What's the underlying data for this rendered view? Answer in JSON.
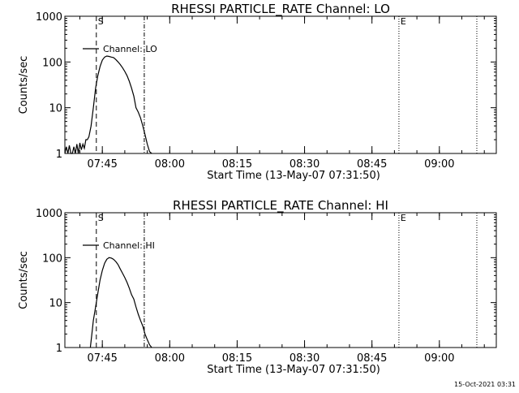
{
  "footer": {
    "timestamp": "15-Oct-2021 03:31"
  },
  "chart_data": [
    {
      "type": "line",
      "title": "RHESSI PARTICLE_RATE Channel: LO",
      "xlabel": "Start Time (13-May-07 07:31:50)",
      "ylabel": "Counts/sec",
      "yscale": "log",
      "ylim": [
        1,
        1000
      ],
      "xlim": [
        "07:36:40",
        "09:12:40"
      ],
      "x_ticks": [
        "07:45",
        "08:00",
        "08:15",
        "08:30",
        "08:45",
        "09:00"
      ],
      "y_ticks": [
        "1",
        "10",
        "100",
        "1000"
      ],
      "legend": {
        "entries": [
          "Channel: LO"
        ],
        "placement": "top-left"
      },
      "markers": [
        {
          "label": "S",
          "time": "07:43:40",
          "style": "dashed"
        },
        {
          "label": "",
          "time": "07:54:20",
          "style": "dash-dot"
        },
        {
          "label": "E",
          "time": "08:51:00",
          "style": "dotted"
        },
        {
          "label": "",
          "time": "09:08:20",
          "style": "dotted"
        }
      ],
      "series": [
        {
          "name": "Channel: LO",
          "x": [
            "07:36:40",
            "07:37:00",
            "07:37:20",
            "07:37:40",
            "07:38:00",
            "07:38:20",
            "07:38:40",
            "07:39:00",
            "07:39:20",
            "07:39:40",
            "07:40:00",
            "07:40:20",
            "07:40:40",
            "07:41:00",
            "07:41:20",
            "07:41:40",
            "07:42:00",
            "07:42:30",
            "07:43:00",
            "07:43:30",
            "07:44:00",
            "07:44:30",
            "07:45:00",
            "07:45:30",
            "07:46:00",
            "07:46:30",
            "07:47:00",
            "07:47:30",
            "07:48:00",
            "07:48:30",
            "07:49:00",
            "07:49:30",
            "07:50:00",
            "07:50:30",
            "07:51:00",
            "07:51:30",
            "07:52:00",
            "07:52:30",
            "07:53:00",
            "07:53:30",
            "07:54:00",
            "07:54:30",
            "07:55:00",
            "07:55:30",
            "07:56:00"
          ],
          "values": [
            1,
            1.4,
            1,
            1.5,
            1,
            1,
            1.4,
            1,
            1.6,
            1,
            1.7,
            1.2,
            1.6,
            1.3,
            2.0,
            2.0,
            2.3,
            4,
            10,
            27,
            50,
            80,
            110,
            128,
            135,
            132,
            128,
            125,
            113,
            100,
            88,
            75,
            62,
            50,
            38,
            27,
            18,
            10,
            8,
            6,
            4,
            2.6,
            1.6,
            1.1,
            1
          ]
        }
      ]
    },
    {
      "type": "line",
      "title": "RHESSI PARTICLE_RATE Channel: HI",
      "xlabel": "Start Time (13-May-07 07:31:50)",
      "ylabel": "Counts/sec",
      "yscale": "log",
      "ylim": [
        1,
        1000
      ],
      "xlim": [
        "07:36:40",
        "09:12:40"
      ],
      "x_ticks": [
        "07:45",
        "08:00",
        "08:15",
        "08:30",
        "08:45",
        "09:00"
      ],
      "y_ticks": [
        "1",
        "10",
        "100",
        "1000"
      ],
      "legend": {
        "entries": [
          "Channel: HI"
        ],
        "placement": "top-left"
      },
      "markers": [
        {
          "label": "S",
          "time": "07:43:40",
          "style": "dashed"
        },
        {
          "label": "",
          "time": "07:54:20",
          "style": "dash-dot"
        },
        {
          "label": "E",
          "time": "08:51:00",
          "style": "dotted"
        },
        {
          "label": "",
          "time": "09:08:20",
          "style": "dotted"
        }
      ],
      "series": [
        {
          "name": "Channel: HI",
          "x": [
            "07:42:20",
            "07:42:40",
            "07:43:00",
            "07:43:30",
            "07:44:00",
            "07:44:30",
            "07:45:00",
            "07:45:30",
            "07:46:00",
            "07:46:30",
            "07:47:00",
            "07:47:30",
            "07:48:00",
            "07:48:30",
            "07:49:00",
            "07:49:30",
            "07:50:00",
            "07:50:30",
            "07:51:00",
            "07:51:30",
            "07:52:00",
            "07:52:30",
            "07:53:00",
            "07:53:30",
            "07:54:00",
            "07:54:30",
            "07:55:00",
            "07:55:30",
            "07:56:00"
          ],
          "values": [
            1,
            2,
            4,
            8,
            16,
            32,
            52,
            75,
            92,
            100,
            98,
            92,
            82,
            70,
            56,
            45,
            36,
            28,
            21,
            15,
            12,
            8,
            5.5,
            4,
            3,
            2,
            1.5,
            1.15,
            1
          ]
        }
      ]
    }
  ]
}
